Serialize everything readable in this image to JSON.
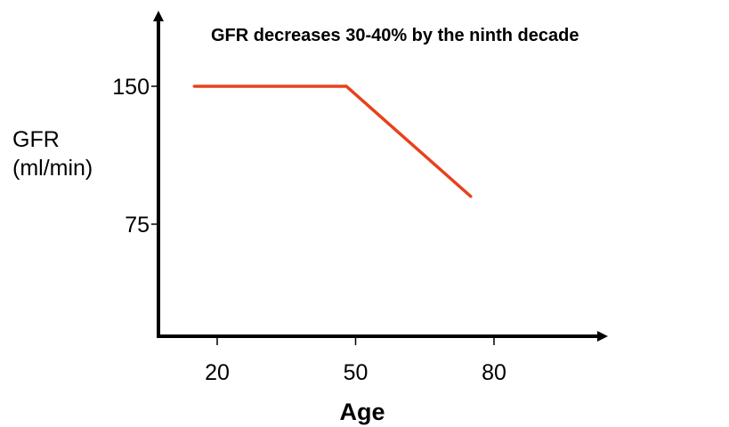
{
  "chart_data": {
    "type": "line",
    "title": "GFR decreases 30-40% by the ninth decade",
    "xlabel": "Age",
    "ylabel_lines": [
      "GFR",
      "(ml/min)"
    ],
    "x_ticks": [
      20,
      50,
      80
    ],
    "y_ticks": [
      150,
      75
    ],
    "xlim": [
      10,
      100
    ],
    "ylim": [
      15,
      175
    ],
    "grid": false,
    "series": [
      {
        "x": [
          15,
          48,
          75
        ],
        "y": [
          150,
          150,
          90
        ]
      }
    ],
    "colors": {
      "line": "#e8401c",
      "axis": "#000000"
    }
  }
}
